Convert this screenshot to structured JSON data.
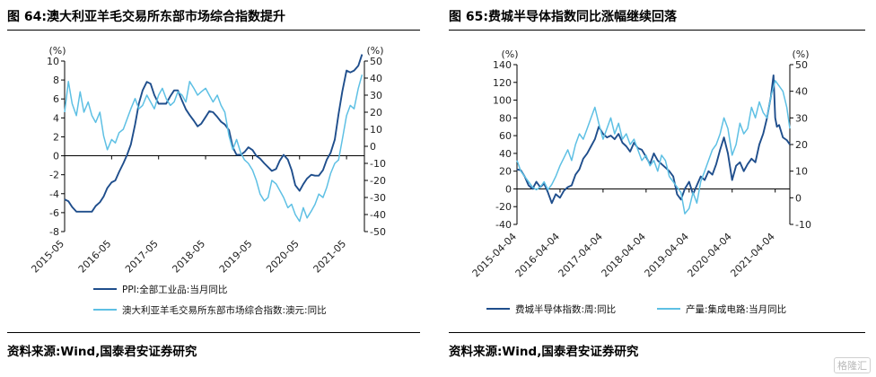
{
  "left": {
    "title": "图 64:澳大利亚羊毛交易所东部市场综合指数提升",
    "source": "资料来源:Wind,国泰君安证券研究"
  },
  "right": {
    "title": "图 65:费城半导体指数同比涨幅继续回落",
    "source": "资料来源:Wind,国泰君安证券研究"
  },
  "watermark": "格隆汇",
  "colors": {
    "dark": "#1f4e8c",
    "light": "#5ec0e4"
  },
  "chart_data": [
    {
      "type": "line",
      "title": "澳大利亚羊毛交易所东部市场综合指数提升",
      "left_unit": "(%)",
      "right_unit": "(%)",
      "ylim_left": [
        -8,
        10
      ],
      "yticks_left": [
        -8,
        -6,
        -4,
        -2,
        0,
        2,
        4,
        6,
        8,
        10
      ],
      "ylim_right": [
        -50,
        50
      ],
      "yticks_right": [
        -50,
        -40,
        -30,
        -20,
        -10,
        0,
        10,
        20,
        30,
        40,
        50
      ],
      "xlim": [
        2015.37,
        2021.75
      ],
      "xticks": [
        {
          "x": 2015.37,
          "label": "2015-05"
        },
        {
          "x": 2016.37,
          "label": "2016-05"
        },
        {
          "x": 2017.37,
          "label": "2017-05"
        },
        {
          "x": 2018.37,
          "label": "2018-05"
        },
        {
          "x": 2019.37,
          "label": "2019-05"
        },
        {
          "x": 2020.37,
          "label": "2020-05"
        },
        {
          "x": 2021.37,
          "label": "2021-05"
        }
      ],
      "series": [
        {
          "name": "PPI:全部工业品:当月同比",
          "axis": "left",
          "color": "#1f4e8c",
          "x": [
            2015.37,
            2015.45,
            2015.53,
            2015.62,
            2015.7,
            2015.78,
            2015.87,
            2015.95,
            2016.03,
            2016.12,
            2016.2,
            2016.28,
            2016.37,
            2016.45,
            2016.53,
            2016.62,
            2016.7,
            2016.78,
            2016.87,
            2016.95,
            2017.03,
            2017.12,
            2017.2,
            2017.28,
            2017.37,
            2017.45,
            2017.53,
            2017.62,
            2017.7,
            2017.78,
            2017.87,
            2017.95,
            2018.03,
            2018.12,
            2018.2,
            2018.28,
            2018.37,
            2018.45,
            2018.53,
            2018.62,
            2018.7,
            2018.78,
            2018.87,
            2018.95,
            2019.03,
            2019.12,
            2019.2,
            2019.28,
            2019.37,
            2019.45,
            2019.53,
            2019.62,
            2019.7,
            2019.78,
            2019.87,
            2019.95,
            2020.03,
            2020.12,
            2020.2,
            2020.28,
            2020.37,
            2020.45,
            2020.53,
            2020.62,
            2020.7,
            2020.78,
            2020.87,
            2020.95,
            2021.03,
            2021.12,
            2021.2,
            2021.28,
            2021.37,
            2021.45,
            2021.53,
            2021.62,
            2021.7
          ],
          "values": [
            -4.6,
            -4.8,
            -5.4,
            -5.9,
            -5.9,
            -5.9,
            -5.9,
            -5.9,
            -5.3,
            -4.9,
            -4.3,
            -3.4,
            -2.8,
            -2.6,
            -1.7,
            -0.8,
            0.1,
            1.2,
            3.3,
            5.5,
            6.9,
            7.8,
            7.6,
            6.4,
            5.5,
            5.5,
            5.5,
            6.3,
            6.9,
            6.9,
            5.8,
            4.9,
            4.3,
            3.7,
            3.1,
            3.4,
            4.1,
            4.7,
            4.6,
            4.1,
            3.6,
            3.3,
            2.7,
            0.9,
            0.1,
            0.1,
            0.4,
            0.9,
            0.6,
            0.0,
            -0.3,
            -0.8,
            -1.2,
            -1.6,
            -1.4,
            -0.5,
            0.1,
            -0.4,
            -1.5,
            -3.1,
            -3.7,
            -3.0,
            -2.4,
            -2.0,
            -2.1,
            -2.1,
            -1.5,
            -0.4,
            0.3,
            1.7,
            4.4,
            6.8,
            9.0,
            8.8,
            9.0,
            9.5,
            10.7
          ]
        },
        {
          "name": "澳大利亚羊毛交易所东部市场综合指数:澳元:同比",
          "axis": "right",
          "color": "#5ec0e4",
          "x": [
            2015.37,
            2015.45,
            2015.53,
            2015.62,
            2015.7,
            2015.78,
            2015.87,
            2015.95,
            2016.03,
            2016.12,
            2016.2,
            2016.28,
            2016.37,
            2016.45,
            2016.53,
            2016.62,
            2016.7,
            2016.78,
            2016.87,
            2016.95,
            2017.03,
            2017.12,
            2017.2,
            2017.28,
            2017.37,
            2017.45,
            2017.53,
            2017.62,
            2017.7,
            2017.78,
            2017.87,
            2017.95,
            2018.03,
            2018.12,
            2018.2,
            2018.28,
            2018.37,
            2018.45,
            2018.53,
            2018.62,
            2018.7,
            2018.78,
            2018.87,
            2018.95,
            2019.03,
            2019.12,
            2019.2,
            2019.28,
            2019.37,
            2019.45,
            2019.53,
            2019.62,
            2019.7,
            2019.78,
            2019.87,
            2019.95,
            2020.03,
            2020.12,
            2020.2,
            2020.28,
            2020.37,
            2020.45,
            2020.53,
            2020.62,
            2020.7,
            2020.78,
            2020.87,
            2020.95,
            2021.03,
            2021.12,
            2021.2,
            2021.28,
            2021.37,
            2021.45,
            2021.53,
            2021.62,
            2021.7
          ],
          "values": [
            20,
            38,
            25,
            18,
            32,
            20,
            26,
            18,
            14,
            20,
            6,
            -2,
            4,
            2,
            8,
            10,
            16,
            22,
            28,
            22,
            24,
            30,
            26,
            22,
            30,
            34,
            28,
            24,
            26,
            32,
            30,
            26,
            38,
            34,
            30,
            32,
            34,
            30,
            26,
            30,
            24,
            20,
            6,
            -2,
            4,
            -4,
            -8,
            -10,
            -14,
            -20,
            -28,
            -32,
            -30,
            -20,
            -22,
            -26,
            -30,
            -36,
            -34,
            -40,
            -44,
            -36,
            -42,
            -38,
            -34,
            -28,
            -30,
            -24,
            -16,
            -10,
            -8,
            4,
            18,
            24,
            22,
            34,
            42
          ]
        }
      ]
    },
    {
      "type": "line",
      "title": "费城半导体指数同比涨幅继续回落",
      "left_unit": "(%)",
      "right_unit": "(%)",
      "ylim_left": [
        -40,
        140
      ],
      "yticks_left": [
        -40,
        -20,
        0,
        20,
        40,
        60,
        80,
        100,
        120,
        140
      ],
      "ylim_right": [
        -10,
        50
      ],
      "yticks_right": [
        -10,
        0,
        10,
        20,
        30,
        40,
        50
      ],
      "xlim": [
        2015.26,
        2021.6
      ],
      "xticks": [
        {
          "x": 2015.26,
          "label": "2015-04-04"
        },
        {
          "x": 2016.26,
          "label": "2016-04-04"
        },
        {
          "x": 2017.26,
          "label": "2017-04-04"
        },
        {
          "x": 2018.26,
          "label": "2018-04-04"
        },
        {
          "x": 2019.26,
          "label": "2019-04-04"
        },
        {
          "x": 2020.26,
          "label": "2020-04-04"
        },
        {
          "x": 2021.26,
          "label": "2021-04-04"
        }
      ],
      "series": [
        {
          "name": "费城半导体指数:周:同比",
          "axis": "left",
          "color": "#1f4e8c",
          "x": [
            2015.26,
            2015.35,
            2015.44,
            2015.53,
            2015.62,
            2015.71,
            2015.8,
            2015.89,
            2015.98,
            2016.07,
            2016.16,
            2016.26,
            2016.35,
            2016.44,
            2016.53,
            2016.62,
            2016.71,
            2016.8,
            2016.89,
            2016.98,
            2017.07,
            2017.16,
            2017.26,
            2017.35,
            2017.44,
            2017.53,
            2017.62,
            2017.71,
            2017.8,
            2017.89,
            2017.98,
            2018.07,
            2018.16,
            2018.26,
            2018.35,
            2018.44,
            2018.53,
            2018.62,
            2018.71,
            2018.8,
            2018.89,
            2018.98,
            2019.07,
            2019.16,
            2019.26,
            2019.35,
            2019.44,
            2019.53,
            2019.62,
            2019.71,
            2019.8,
            2019.89,
            2019.98,
            2020.07,
            2020.16,
            2020.26,
            2020.35,
            2020.44,
            2020.53,
            2020.62,
            2020.71,
            2020.8,
            2020.89,
            2020.98,
            2021.07,
            2021.16,
            2021.22,
            2021.26,
            2021.3,
            2021.35,
            2021.44,
            2021.53,
            2021.6
          ],
          "values": [
            22,
            21,
            14,
            4,
            0,
            8,
            2,
            6,
            -4,
            -16,
            -6,
            -10,
            -2,
            2,
            4,
            16,
            22,
            34,
            40,
            48,
            56,
            70,
            62,
            58,
            60,
            56,
            62,
            52,
            48,
            42,
            52,
            46,
            44,
            36,
            28,
            40,
            32,
            28,
            24,
            20,
            14,
            -6,
            -12,
            0,
            8,
            -6,
            4,
            14,
            10,
            20,
            16,
            28,
            44,
            58,
            40,
            10,
            26,
            30,
            20,
            28,
            34,
            30,
            50,
            62,
            80,
            104,
            128,
            80,
            70,
            72,
            58,
            55,
            50
          ]
        },
        {
          "name": "产量:集成电路:当月同比",
          "axis": "right",
          "color": "#5ec0e4",
          "x": [
            2015.26,
            2015.35,
            2015.44,
            2015.53,
            2015.62,
            2015.71,
            2015.8,
            2015.89,
            2015.98,
            2016.07,
            2016.16,
            2016.26,
            2016.35,
            2016.44,
            2016.53,
            2016.62,
            2016.71,
            2016.8,
            2016.89,
            2016.98,
            2017.07,
            2017.16,
            2017.26,
            2017.35,
            2017.44,
            2017.53,
            2017.62,
            2017.71,
            2017.8,
            2017.89,
            2017.98,
            2018.07,
            2018.16,
            2018.26,
            2018.35,
            2018.44,
            2018.53,
            2018.62,
            2018.71,
            2018.8,
            2018.89,
            2018.98,
            2019.07,
            2019.16,
            2019.26,
            2019.35,
            2019.44,
            2019.53,
            2019.62,
            2019.71,
            2019.8,
            2019.89,
            2019.98,
            2020.07,
            2020.16,
            2020.26,
            2020.35,
            2020.44,
            2020.53,
            2020.62,
            2020.71,
            2020.8,
            2020.89,
            2020.98,
            2021.07,
            2021.16,
            2021.26,
            2021.35,
            2021.44,
            2021.53,
            2021.6
          ],
          "values": [
            14,
            10,
            8,
            6,
            4,
            3,
            4,
            6,
            3,
            5,
            8,
            12,
            15,
            18,
            14,
            20,
            24,
            22,
            26,
            30,
            34,
            28,
            22,
            26,
            30,
            24,
            28,
            22,
            24,
            20,
            22,
            18,
            14,
            16,
            12,
            14,
            10,
            16,
            14,
            8,
            6,
            4,
            2,
            -6,
            -4,
            2,
            -2,
            6,
            10,
            14,
            18,
            20,
            24,
            30,
            26,
            16,
            20,
            28,
            24,
            26,
            34,
            30,
            36,
            32,
            30,
            38,
            44,
            42,
            40,
            34,
            26
          ]
        }
      ]
    }
  ]
}
